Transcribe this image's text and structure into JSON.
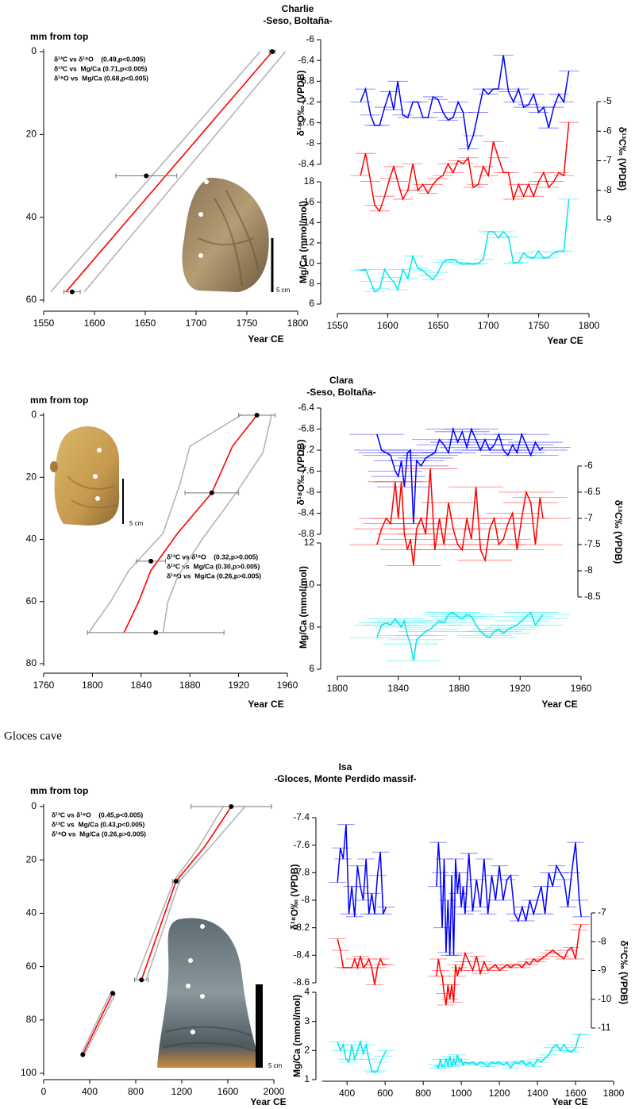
{
  "section_label": "Gloces cave",
  "chart_data": [
    {
      "type": "scatter",
      "ylabel": "mm from top",
      "xlabel": "Year CE",
      "xlim": [
        1550,
        1800
      ],
      "xticks": [
        1550,
        1600,
        1650,
        1700,
        1750,
        1800
      ],
      "ylim": [
        0,
        60
      ],
      "yticks": [
        0,
        20,
        40,
        60
      ],
      "y_inverted": true,
      "annotations": [
        "δ¹³C vs δ¹⁸O    (0.49,p<0.005)",
        "δ¹³C vs  Mg/Ca (0.71,p<0.005)",
        "δ¹⁸O vs  Mg/Ca (0.68,p<0.005)"
      ],
      "scale_label": "5 cm",
      "lines": [
        {
          "color": "#b4b4b4",
          "x": [
            1763,
            1557
          ],
          "values": [
            0,
            58
          ]
        },
        {
          "color": "#b4b4b4",
          "x": [
            1788,
            1590
          ],
          "values": [
            0,
            58
          ]
        },
        {
          "color": "#ff0000",
          "x": [
            1775,
            1572
          ],
          "values": [
            0,
            58
          ]
        }
      ],
      "points": {
        "color": "#000000",
        "x": [
          1775,
          1651,
          1578
        ],
        "values": [
          0,
          30,
          58
        ],
        "xerr": [
          3,
          30,
          8
        ]
      }
    },
    {
      "type": "line",
      "title": "Charlie",
      "subtitle": "-Seso, Boltaña-",
      "xlabel": "Year CE",
      "xlim": [
        1550,
        1800
      ],
      "xticks": [
        1550,
        1600,
        1650,
        1700,
        1750,
        1800
      ],
      "ylim": [
        -8.4,
        -6
      ],
      "yticks": [
        -8.4,
        -8,
        -7.6,
        -7.2,
        -6.8,
        -6.4,
        -6
      ],
      "ylabel": "δ¹⁸O‰ (VPDB)",
      "y2lim": [
        -9,
        -5
      ],
      "y2ticks": [
        -9,
        -8,
        -7,
        -6,
        -5
      ],
      "y2label": "δ¹³C‰ (VPDB)",
      "y3lim": [
        6,
        18
      ],
      "y3ticks": [
        6,
        8,
        10,
        12,
        14,
        16,
        18
      ],
      "y3label": "Mg/Ca (mmol/mol)",
      "x": [
        1573,
        1578,
        1583,
        1587,
        1592,
        1597,
        1602,
        1606,
        1610,
        1615,
        1620,
        1625,
        1630,
        1635,
        1640,
        1645,
        1650,
        1655,
        1660,
        1665,
        1670,
        1675,
        1680,
        1685,
        1690,
        1695,
        1700,
        1705,
        1710,
        1715,
        1720,
        1725,
        1730,
        1735,
        1740,
        1745,
        1750,
        1755,
        1760,
        1765,
        1770,
        1775,
        1780
      ],
      "series": [
        {
          "color": "#0000ff",
          "axis": "y",
          "xerr": 10,
          "values": [
            -7.2,
            -6.95,
            -7.45,
            -7.65,
            -7.65,
            -7.3,
            -7.0,
            -7.35,
            -6.8,
            -7.45,
            -7.5,
            -7.2,
            -7.2,
            -7.5,
            -7.5,
            -7.1,
            -7.15,
            -7.4,
            -7.55,
            -7.5,
            -7.2,
            -7.4,
            -8.1,
            -7.85,
            -7.4,
            -6.95,
            -7.05,
            -6.95,
            -6.95,
            -6.3,
            -7.0,
            -7.2,
            -6.95,
            -7.3,
            -7.25,
            -7.05,
            -7.4,
            -7.3,
            -7.7,
            -7.3,
            -7.05,
            -7.2,
            -6.6
          ]
        },
        {
          "color": "#ff0000",
          "axis": "y2",
          "xerr": 10,
          "values": [
            -7.5,
            -6.75,
            -7.7,
            -8.5,
            -8.7,
            -8.2,
            -7.6,
            -7.2,
            -7.7,
            -8.3,
            -8.0,
            -7.1,
            -8.0,
            -7.8,
            -8.1,
            -7.8,
            -7.6,
            -7.5,
            -7.1,
            -7.4,
            -7.0,
            -7.1,
            -6.9,
            -7.9,
            -7.8,
            -7.2,
            -7.5,
            -6.35,
            -6.9,
            -7.4,
            -7.4,
            -8.3,
            -7.8,
            -8.2,
            -7.8,
            -8.2,
            -7.7,
            -7.4,
            -7.9,
            -7.7,
            -7.4,
            -7.5,
            -5.7
          ]
        },
        {
          "color": "#00e5ee",
          "axis": "y3",
          "xerr": 10,
          "values": [
            9.3,
            9.4,
            8.2,
            7.2,
            7.5,
            9.4,
            8.6,
            8.2,
            7.4,
            9.4,
            8.5,
            10.7,
            9.5,
            9.3,
            8.8,
            8.4,
            9.1,
            10.1,
            10.3,
            10.4,
            10.1,
            9.9,
            10.0,
            9.9,
            10.0,
            10.4,
            13.1,
            13.1,
            12.5,
            13.1,
            12.6,
            10.0,
            10.1,
            11.0,
            10.6,
            10.5,
            11.2,
            10.5,
            10.6,
            11.0,
            11.2,
            11.2,
            16.3
          ]
        }
      ]
    },
    {
      "type": "scatter",
      "ylabel": "mm from top",
      "xlabel": "Year CE",
      "xlim": [
        1760,
        1960
      ],
      "xticks": [
        1760,
        1800,
        1840,
        1880,
        1920,
        1960
      ],
      "ylim": [
        0,
        80
      ],
      "yticks": [
        0,
        20,
        40,
        60,
        80
      ],
      "y_inverted": true,
      "annotations": [
        "δ¹³C vs δ¹⁸O    (0.32,p>0.005)",
        "δ¹³C vs  Mg/Ca (0.30,p>0.005)",
        "δ¹⁸O vs  Mg/Ca (0.26,p>0.005)"
      ],
      "scale_label": "5 cm",
      "lines": [
        {
          "color": "#b4b4b4",
          "x": [
            1922,
            1880,
            1872,
            1858,
            1830,
            1815,
            1797
          ],
          "values": [
            0,
            10,
            22,
            38,
            50,
            60,
            70
          ]
        },
        {
          "color": "#b4b4b4",
          "x": [
            1947,
            1940,
            1918,
            1890,
            1870,
            1862,
            1858
          ],
          "values": [
            0,
            12,
            25,
            40,
            52,
            60,
            70
          ]
        },
        {
          "color": "#ff0000",
          "x": [
            1935,
            1915,
            1898,
            1870,
            1848,
            1838,
            1826
          ],
          "values": [
            0,
            10,
            25,
            38,
            50,
            60,
            70
          ]
        }
      ],
      "points": {
        "color": "#000000",
        "x": [
          1935,
          1898,
          1848,
          1852
        ],
        "values": [
          0,
          25,
          47,
          70
        ],
        "xerr": [
          15,
          22,
          12,
          56
        ]
      }
    },
    {
      "type": "line",
      "title": "Clara",
      "subtitle": "-Seso, Boltaña-",
      "xlabel": "Year CE",
      "xlim": [
        1800,
        1960
      ],
      "xticks": [
        1800,
        1840,
        1880,
        1920,
        1960
      ],
      "ylim": [
        -8.8,
        -6.4
      ],
      "yticks": [
        -8.8,
        -8.4,
        -8,
        -7.6,
        -7.2,
        -6.8,
        -6.4
      ],
      "ylabel": "δ¹⁸O‰ (VPDB)",
      "y2lim": [
        -8.5,
        -6
      ],
      "y2ticks": [
        -8.5,
        -8,
        -7.5,
        -7,
        -6.5,
        -6
      ],
      "y2label": "δ¹³C‰ (VPDB)",
      "y3lim": [
        6,
        12
      ],
      "y3ticks": [
        6,
        8,
        10,
        12
      ],
      "y3label": "Mg/Ca (mmol/mol)",
      "x": [
        1826,
        1829,
        1832,
        1835,
        1838,
        1840,
        1842,
        1844,
        1846,
        1848,
        1850,
        1852,
        1855,
        1858,
        1861,
        1864,
        1867,
        1870,
        1873,
        1876,
        1879,
        1882,
        1885,
        1888,
        1891,
        1894,
        1897,
        1900,
        1903,
        1906,
        1909,
        1912,
        1915,
        1918,
        1921,
        1924,
        1927,
        1930,
        1933,
        1935
      ],
      "series": [
        {
          "color": "#0000ff",
          "axis": "y",
          "xerr": 18,
          "values": [
            -6.9,
            -7.2,
            -7.25,
            -7.3,
            -7.6,
            -7.7,
            -7.4,
            -7.9,
            -7.25,
            -7.2,
            -8.6,
            -7.4,
            -7.5,
            -7.35,
            -7.3,
            -7.25,
            -7.0,
            -7.1,
            -7.25,
            -6.8,
            -7.05,
            -6.85,
            -7.15,
            -6.8,
            -7.0,
            -7.2,
            -7.0,
            -7.2,
            -7.1,
            -6.9,
            -7.2,
            -7.3,
            -7.1,
            -7.25,
            -6.9,
            -7.1,
            -7.3,
            -7.05,
            -7.2,
            -7.15
          ]
        },
        {
          "color": "#ff0000",
          "axis": "y2",
          "xerr": 18,
          "values": [
            -7.5,
            -7.2,
            -7.0,
            -7.1,
            -6.3,
            -7.0,
            -6.3,
            -7.3,
            -7.6,
            -7.4,
            -7.9,
            -7.2,
            -7.0,
            -7.3,
            -6.05,
            -7.6,
            -7.0,
            -7.5,
            -6.7,
            -7.2,
            -7.5,
            -7.6,
            -7.0,
            -7.4,
            -6.4,
            -7.6,
            -7.8,
            -7.2,
            -7.0,
            -7.5,
            -7.4,
            -7.1,
            -6.9,
            -7.6,
            -7.0,
            -6.5,
            -6.7,
            -7.5,
            -6.6,
            -7.0
          ]
        },
        {
          "color": "#00e5ee",
          "axis": "y3",
          "xerr": 18,
          "values": [
            7.5,
            8.1,
            8.2,
            8.1,
            8.4,
            8.2,
            8.0,
            8.3,
            7.6,
            7.2,
            6.4,
            7.4,
            7.6,
            7.8,
            7.9,
            8.1,
            8.3,
            8.2,
            8.6,
            8.7,
            8.5,
            8.4,
            8.6,
            8.5,
            8.1,
            7.8,
            7.6,
            7.5,
            7.8,
            7.9,
            7.7,
            7.9,
            8.0,
            8.1,
            8.3,
            8.5,
            8.7,
            8.1,
            8.4,
            8.6
          ]
        }
      ]
    },
    {
      "type": "scatter",
      "ylabel": "mm from top",
      "xlabel": "Year CE",
      "xlim": [
        0,
        2000
      ],
      "xticks": [
        0,
        400,
        800,
        1200,
        1600,
        2000
      ],
      "ylim": [
        0,
        100
      ],
      "yticks": [
        0,
        20,
        40,
        60,
        80,
        100
      ],
      "y_inverted": true,
      "annotations": [
        "δ¹³C vs δ¹⁸O    (0.45,p<0.005)",
        "δ¹³C vs  Mg/Ca (0.43,p<0.005)",
        "δ¹⁸O vs  Mg/Ca (0.26,p>0.005)"
      ],
      "scale_label": "5 cm",
      "lines": [
        {
          "color": "#b4b4b4",
          "x": [
            1560,
            1350,
            1130,
            800
          ],
          "values": [
            0,
            15,
            28,
            65
          ]
        },
        {
          "color": "#b4b4b4",
          "x": [
            1750,
            1450,
            1180,
            890
          ],
          "values": [
            0,
            15,
            28,
            65
          ]
        },
        {
          "color": "#ff0000",
          "x": [
            1630,
            1400,
            1150,
            850
          ],
          "values": [
            0,
            15,
            28,
            65
          ]
        },
        {
          "color": "#b4b4b4",
          "x": [
            580,
            325
          ],
          "values": [
            70,
            93
          ]
        },
        {
          "color": "#b4b4b4",
          "x": [
            625,
            355
          ],
          "values": [
            70,
            93
          ]
        },
        {
          "color": "#ff0000",
          "x": [
            600,
            340
          ],
          "values": [
            70,
            93
          ]
        }
      ],
      "points": {
        "color": "#000000",
        "x": [
          1630,
          1150,
          850,
          600,
          340
        ],
        "values": [
          0,
          28,
          65,
          70,
          93
        ],
        "xerr": [
          350,
          30,
          60,
          10,
          10
        ]
      }
    },
    {
      "type": "line",
      "title": "Isa",
      "subtitle": "-Gloces, Monte Perdido massif-",
      "xlabel": "Year CE",
      "xlim": [
        270,
        1800
      ],
      "xticks": [
        400,
        600,
        800,
        1000,
        1200,
        1400,
        1600,
        1800
      ],
      "ylim": [
        -8.6,
        -7.4
      ],
      "yticks": [
        -8.6,
        -8.4,
        -8.2,
        -8,
        -7.8,
        -7.6,
        -7.4
      ],
      "ylabel": "δ¹⁸O‰ (VPDB)",
      "y2lim": [
        -11,
        -7
      ],
      "y2ticks": [
        -11,
        -10,
        -9,
        -8,
        -7
      ],
      "y2label": "δ¹³C‰ (VPDB)",
      "y3lim": [
        1,
        4
      ],
      "y3ticks": [
        1,
        2,
        3,
        4
      ],
      "y3label": "Mg/Ca (mmol/mol)",
      "x": [
        350,
        365,
        380,
        395,
        410,
        425,
        440,
        455,
        470,
        485,
        500,
        515,
        530,
        545,
        560,
        575,
        590,
        605,
        740,
        870,
        880,
        890,
        900,
        910,
        920,
        930,
        940,
        950,
        960,
        970,
        980,
        990,
        1000,
        1010,
        1020,
        1040,
        1060,
        1080,
        1100,
        1120,
        1140,
        1160,
        1180,
        1200,
        1220,
        1240,
        1260,
        1280,
        1300,
        1320,
        1340,
        1360,
        1380,
        1400,
        1420,
        1440,
        1460,
        1480,
        1500,
        1520,
        1540,
        1560,
        1580,
        1600,
        1620,
        1630
      ],
      "series": [
        {
          "color": "#0000ff",
          "axis": "y",
          "xerr": 45,
          "values": [
            -7.87,
            -7.62,
            -7.7,
            -7.45,
            -8.1,
            -7.9,
            -8.12,
            -7.75,
            -7.9,
            -8.0,
            -7.7,
            -8.1,
            -7.95,
            -8.1,
            -7.82,
            -7.65,
            -8.1,
            -8.05,
            null,
            -7.9,
            -7.58,
            -7.8,
            -8.2,
            -7.7,
            -8.38,
            -8.0,
            -8.4,
            -7.82,
            -8.4,
            -7.7,
            -7.95,
            -7.8,
            -8.05,
            -7.9,
            -8.1,
            -7.66,
            -8.08,
            -7.85,
            -8.05,
            -7.7,
            -8.1,
            -7.82,
            -8.0,
            -7.75,
            -8.0,
            -7.85,
            -7.82,
            -8.1,
            -8.15,
            -8.05,
            -8.15,
            -8.0,
            -8.1,
            -8.0,
            -7.9,
            -8.1,
            -7.8,
            -7.9,
            -7.75,
            -7.8,
            -7.85,
            -8.05,
            -7.8,
            -7.58,
            -8.0,
            -8.12
          ]
        },
        {
          "color": "#ff0000",
          "axis": "y2",
          "xerr": 45,
          "values": [
            -7.9,
            -8.3,
            -8.9,
            -8.9,
            -8.9,
            -8.9,
            -8.6,
            -8.9,
            -8.5,
            -8.9,
            -8.8,
            -8.6,
            -8.9,
            -9.5,
            -8.9,
            -8.6,
            -8.8,
            -8.8,
            null,
            -9.2,
            -8.6,
            -9.0,
            -9.2,
            -9.8,
            -10.2,
            -9.5,
            -10.0,
            -9.5,
            -10.1,
            -8.8,
            -9.2,
            -8.9,
            -9.0,
            -8.7,
            -8.4,
            -8.7,
            -9.0,
            -8.5,
            -9.1,
            -8.7,
            -9.0,
            -8.9,
            -8.8,
            -9.0,
            -8.9,
            -8.8,
            -8.9,
            -8.8,
            -8.8,
            -8.9,
            -8.7,
            -8.8,
            -8.6,
            -8.7,
            -8.6,
            -8.5,
            -8.4,
            -8.3,
            -8.4,
            -8.5,
            -8.6,
            -8.3,
            -8.2,
            -8.6,
            -7.6,
            -7.4
          ]
        },
        {
          "color": "#00e5ee",
          "axis": "y3",
          "xerr": 45,
          "values": [
            2.3,
            2.0,
            2.2,
            1.7,
            1.6,
            2.2,
            1.7,
            2.0,
            2.3,
            1.9,
            2.2,
            1.7,
            1.3,
            1.25,
            1.3,
            1.6,
            1.8,
            2.0,
            null,
            1.5,
            1.4,
            1.7,
            1.45,
            1.5,
            1.7,
            1.5,
            1.8,
            1.45,
            1.7,
            1.5,
            1.85,
            1.6,
            1.7,
            1.5,
            1.6,
            1.55,
            1.6,
            1.5,
            1.6,
            1.55,
            1.45,
            1.6,
            1.55,
            1.6,
            1.5,
            1.6,
            1.4,
            1.6,
            1.55,
            1.65,
            1.5,
            1.6,
            1.45,
            1.7,
            1.6,
            1.75,
            1.85,
            2.1,
            2.2,
            2.0,
            2.2,
            2.0,
            1.95,
            2.1,
            2.55,
            2.55
          ]
        }
      ]
    }
  ]
}
